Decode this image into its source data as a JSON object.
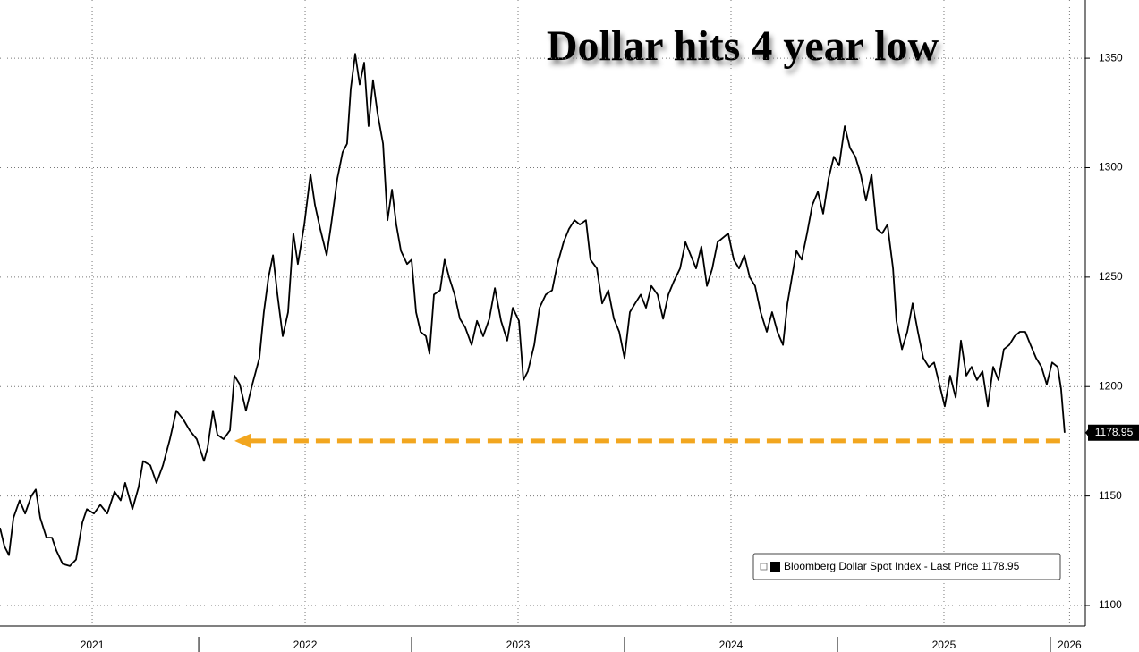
{
  "chart_data": {
    "type": "line",
    "title": "Dollar hits 4 year low",
    "x": [
      2021.067,
      2021.088,
      2021.109,
      2021.13,
      2021.159,
      2021.185,
      2021.214,
      2021.235,
      2021.256,
      2021.285,
      2021.311,
      2021.332,
      2021.361,
      2021.395,
      2021.424,
      2021.454,
      2021.475,
      2021.508,
      2021.538,
      2021.571,
      2021.605,
      2021.634,
      2021.655,
      2021.689,
      2021.718,
      2021.739,
      2021.773,
      2021.802,
      2021.832,
      2021.865,
      2021.895,
      2021.928,
      2021.958,
      2021.991,
      2022.025,
      2022.042,
      2022.067,
      2022.088,
      2022.117,
      2022.147,
      2022.168,
      2022.193,
      2022.222,
      2022.252,
      2022.285,
      2022.306,
      2022.328,
      2022.349,
      2022.37,
      2022.395,
      2022.42,
      2022.445,
      2022.466,
      2022.496,
      2022.525,
      2022.546,
      2022.571,
      2022.601,
      2022.622,
      2022.651,
      2022.676,
      2022.697,
      2022.714,
      2022.735,
      2022.756,
      2022.777,
      2022.798,
      2022.819,
      2022.84,
      2022.866,
      2022.887,
      2022.908,
      2022.928,
      2022.95,
      2022.979,
      2023.0,
      2023.021,
      2023.042,
      2023.067,
      2023.084,
      2023.105,
      2023.134,
      2023.155,
      2023.176,
      2023.202,
      2023.227,
      2023.252,
      2023.282,
      2023.307,
      2023.336,
      2023.365,
      2023.391,
      2023.42,
      2023.449,
      2023.475,
      2023.504,
      2023.525,
      2023.546,
      2023.576,
      2023.601,
      2023.63,
      2023.66,
      2023.685,
      2023.714,
      2023.739,
      2023.765,
      2023.79,
      2023.819,
      2023.84,
      2023.87,
      2023.895,
      2023.924,
      2023.95,
      2023.975,
      2024.0,
      2024.025,
      2024.05,
      2024.076,
      2024.101,
      2024.126,
      2024.155,
      2024.181,
      2024.206,
      2024.231,
      2024.261,
      2024.286,
      2024.311,
      2024.336,
      2024.361,
      2024.387,
      2024.412,
      2024.437,
      2024.462,
      2024.487,
      2024.513,
      2024.538,
      2024.563,
      2024.588,
      2024.613,
      2024.639,
      2024.668,
      2024.693,
      2024.718,
      2024.744,
      2024.765,
      2024.786,
      2024.807,
      2024.832,
      2024.857,
      2024.882,
      2024.908,
      2024.933,
      2024.958,
      2024.983,
      2025.008,
      2025.034,
      2025.059,
      2025.084,
      2025.109,
      2025.134,
      2025.16,
      2025.185,
      2025.21,
      2025.235,
      2025.261,
      2025.277,
      2025.303,
      2025.328,
      2025.353,
      2025.378,
      2025.403,
      2025.429,
      2025.454,
      2025.479,
      2025.504,
      2025.529,
      2025.555,
      2025.58,
      2025.605,
      2025.63,
      2025.655,
      2025.681,
      2025.706,
      2025.731,
      2025.756,
      2025.781,
      2025.807,
      2025.832,
      2025.857,
      2025.882,
      2025.907,
      2025.933,
      2025.958,
      2025.983,
      2026.008,
      2026.034,
      2026.05,
      2026.067
    ],
    "series": [
      {
        "name": "Bloomberg Dollar Spot Index - Last Price 1178.95",
        "color": "#000000",
        "end_label": "1178.95",
        "values": [
          1135.5,
          1127,
          1123,
          1140,
          1148,
          1142,
          1150,
          1153,
          1140,
          1131,
          1131,
          1125,
          1119,
          1118,
          1121,
          1138,
          1144,
          1142,
          1146,
          1142,
          1152,
          1148,
          1156,
          1144,
          1154,
          1166,
          1164,
          1156,
          1164,
          1176,
          1189,
          1185,
          1180,
          1176,
          1166,
          1172,
          1189,
          1178,
          1176,
          1180,
          1205,
          1201,
          1189,
          1201,
          1213,
          1234,
          1250,
          1260,
          1242,
          1223,
          1234,
          1270,
          1256,
          1274,
          1297,
          1283,
          1272,
          1260,
          1274,
          1295,
          1307,
          1311,
          1336,
          1352,
          1338,
          1348,
          1319,
          1340,
          1325,
          1311,
          1276,
          1290,
          1274,
          1262,
          1256,
          1258,
          1234,
          1225,
          1223,
          1215,
          1242,
          1244,
          1258,
          1250,
          1242,
          1231,
          1227,
          1219,
          1230,
          1223,
          1231,
          1245,
          1230,
          1221,
          1236,
          1230,
          1203,
          1207,
          1219,
          1236,
          1242,
          1244,
          1256,
          1266,
          1272,
          1276,
          1274,
          1276,
          1258,
          1254,
          1238,
          1244,
          1231,
          1225,
          1213,
          1234,
          1238,
          1242,
          1236,
          1246,
          1242,
          1231,
          1242,
          1248,
          1254,
          1266,
          1260,
          1254,
          1264,
          1246,
          1254,
          1266,
          1268,
          1270,
          1258,
          1254,
          1260,
          1250,
          1246,
          1234,
          1225,
          1234,
          1225,
          1219,
          1238,
          1250,
          1262,
          1258,
          1270,
          1283,
          1289,
          1279,
          1295,
          1305,
          1301,
          1319,
          1309,
          1305,
          1297,
          1285,
          1297,
          1272,
          1270,
          1274,
          1254,
          1230,
          1217,
          1225,
          1238,
          1225,
          1213,
          1209,
          1211,
          1201,
          1191,
          1205,
          1195,
          1221,
          1205,
          1209,
          1203,
          1207,
          1191,
          1209,
          1203,
          1217,
          1219,
          1223,
          1225,
          1225,
          1219,
          1213,
          1209,
          1201,
          1211,
          1209,
          1199,
          1178.95
        ]
      }
    ],
    "arrow": {
      "y": 1175.2,
      "x_from": 2026.046,
      "x_to": 2022.168,
      "color": "#f2a61f"
    },
    "xlim": [
      2021.067,
      2026.164
    ],
    "ylim": [
      1090.6,
      1376.6
    ],
    "yticks": [
      1100,
      1150,
      1200,
      1250,
      1300,
      1350
    ],
    "xticks": [
      {
        "value": 2021.5,
        "label": "2021"
      },
      {
        "value": 2022.5,
        "label": "2022"
      },
      {
        "value": 2023.5,
        "label": "2023"
      },
      {
        "value": 2024.5,
        "label": "2024"
      },
      {
        "value": 2025.5,
        "label": "2025"
      },
      {
        "value": 2026.09,
        "label": "2026"
      }
    ],
    "x_separators": [
      2022,
      2023,
      2024,
      2025,
      2026
    ],
    "grid": true,
    "legend": "lower right"
  }
}
